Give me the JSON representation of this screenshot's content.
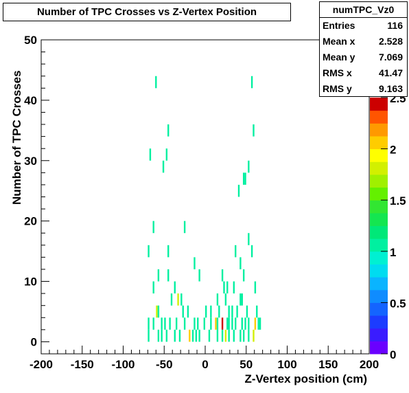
{
  "chart_data": {
    "type": "heatmap",
    "title": "Number of TPC Crosses vs Z-Vertex Position",
    "xlabel": "Z-Vertex position (cm)",
    "ylabel": "Number of TPC Crosses",
    "xlim": [
      -200,
      200
    ],
    "ylim": [
      -2,
      50
    ],
    "zlim": [
      0,
      2.5
    ],
    "x_ticks": [
      "-200",
      "-150",
      "-100",
      "-50",
      "0",
      "50",
      "100",
      "150",
      "200"
    ],
    "y_ticks": [
      "0",
      "10",
      "20",
      "30",
      "40",
      "50"
    ],
    "z_ticks": [
      "0",
      "0.5",
      "1",
      "1.5",
      "2",
      "2.5"
    ],
    "bin_width_x": 2,
    "bin_height_y": 2,
    "bins": [
      {
        "x": -60,
        "y": 43,
        "z": 1
      },
      {
        "x": 57,
        "y": 43,
        "z": 1
      },
      {
        "x": -45,
        "y": 35,
        "z": 1
      },
      {
        "x": 59,
        "y": 35,
        "z": 1
      },
      {
        "x": -67,
        "y": 31,
        "z": 1
      },
      {
        "x": -47,
        "y": 31,
        "z": 1
      },
      {
        "x": -51,
        "y": 29,
        "z": 1
      },
      {
        "x": 53,
        "y": 29,
        "z": 1
      },
      {
        "x": 47,
        "y": 27,
        "z": 1
      },
      {
        "x": 49,
        "y": 27,
        "z": 1
      },
      {
        "x": 41,
        "y": 25,
        "z": 1
      },
      {
        "x": -63,
        "y": 19,
        "z": 1
      },
      {
        "x": -25,
        "y": 19,
        "z": 1
      },
      {
        "x": 53,
        "y": 17,
        "z": 1
      },
      {
        "x": -69,
        "y": 15,
        "z": 1
      },
      {
        "x": -45,
        "y": 15,
        "z": 1
      },
      {
        "x": 37,
        "y": 15,
        "z": 1
      },
      {
        "x": 57,
        "y": 15,
        "z": 1
      },
      {
        "x": -13,
        "y": 13,
        "z": 1
      },
      {
        "x": 43,
        "y": 13,
        "z": 1
      },
      {
        "x": -57,
        "y": 11,
        "z": 1
      },
      {
        "x": -45,
        "y": 11,
        "z": 1
      },
      {
        "x": -7,
        "y": 11,
        "z": 1
      },
      {
        "x": 21,
        "y": 11,
        "z": 1
      },
      {
        "x": 47,
        "y": 11,
        "z": 1
      },
      {
        "x": -63,
        "y": 9,
        "z": 1
      },
      {
        "x": -37,
        "y": 9,
        "z": 1
      },
      {
        "x": 23,
        "y": 9,
        "z": 1
      },
      {
        "x": 27,
        "y": 9,
        "z": 1
      },
      {
        "x": 35,
        "y": 9,
        "z": 1
      },
      {
        "x": 61,
        "y": 9,
        "z": 1
      },
      {
        "x": -41,
        "y": 7,
        "z": 1
      },
      {
        "x": -33,
        "y": 7,
        "z": 1.8
      },
      {
        "x": -29,
        "y": 7,
        "z": 1
      },
      {
        "x": 15,
        "y": 7,
        "z": 1
      },
      {
        "x": 25,
        "y": 7,
        "z": 1
      },
      {
        "x": 43,
        "y": 7,
        "z": 1
      },
      {
        "x": 45,
        "y": 7,
        "z": 1
      },
      {
        "x": -59,
        "y": 5,
        "z": 1.8
      },
      {
        "x": -57,
        "y": 5,
        "z": 1
      },
      {
        "x": -27,
        "y": 5,
        "z": 1
      },
      {
        "x": -21,
        "y": 5,
        "z": 1
      },
      {
        "x": 1,
        "y": 5,
        "z": 1
      },
      {
        "x": 7,
        "y": 5,
        "z": 1
      },
      {
        "x": 17,
        "y": 5,
        "z": 1
      },
      {
        "x": 29,
        "y": 5,
        "z": 1
      },
      {
        "x": 33,
        "y": 5,
        "z": 1
      },
      {
        "x": 39,
        "y": 5,
        "z": 1
      },
      {
        "x": 51,
        "y": 5,
        "z": 1
      },
      {
        "x": 63,
        "y": 5,
        "z": 1
      },
      {
        "x": -69,
        "y": 3,
        "z": 1
      },
      {
        "x": -63,
        "y": 3,
        "z": 1
      },
      {
        "x": -53,
        "y": 3,
        "z": 1
      },
      {
        "x": -49,
        "y": 3,
        "z": 1
      },
      {
        "x": -43,
        "y": 3,
        "z": 1
      },
      {
        "x": -35,
        "y": 3,
        "z": 1
      },
      {
        "x": -25,
        "y": 3,
        "z": 1
      },
      {
        "x": -13,
        "y": 3,
        "z": 1
      },
      {
        "x": -9,
        "y": 3,
        "z": 1
      },
      {
        "x": -1,
        "y": 3,
        "z": 1
      },
      {
        "x": 7,
        "y": 3,
        "z": 1
      },
      {
        "x": 13,
        "y": 3,
        "z": 2
      },
      {
        "x": 15,
        "y": 3,
        "z": 1
      },
      {
        "x": 21,
        "y": 3,
        "z": 2.5
      },
      {
        "x": 27,
        "y": 3,
        "z": 1
      },
      {
        "x": 29,
        "y": 3,
        "z": 1
      },
      {
        "x": 33,
        "y": 3,
        "z": 1
      },
      {
        "x": 37,
        "y": 3,
        "z": 1
      },
      {
        "x": 45,
        "y": 3,
        "z": 1
      },
      {
        "x": 49,
        "y": 3,
        "z": 1
      },
      {
        "x": 53,
        "y": 3,
        "z": 1
      },
      {
        "x": 61,
        "y": 3,
        "z": 2
      },
      {
        "x": 65,
        "y": 3,
        "z": 1
      },
      {
        "x": 67,
        "y": 3,
        "z": 1
      },
      {
        "x": -69,
        "y": 1,
        "z": 1
      },
      {
        "x": -57,
        "y": 1,
        "z": 1
      },
      {
        "x": -53,
        "y": 1,
        "z": 1
      },
      {
        "x": -47,
        "y": 1,
        "z": 1
      },
      {
        "x": -37,
        "y": 1,
        "z": 1
      },
      {
        "x": -31,
        "y": 1,
        "z": 1
      },
      {
        "x": -19,
        "y": 1,
        "z": 2
      },
      {
        "x": -15,
        "y": 1,
        "z": 1
      },
      {
        "x": -11,
        "y": 1,
        "z": 1
      },
      {
        "x": -7,
        "y": 1,
        "z": 1
      },
      {
        "x": 5,
        "y": 1,
        "z": 1
      },
      {
        "x": 15,
        "y": 1,
        "z": 1
      },
      {
        "x": 21,
        "y": 1,
        "z": 1
      },
      {
        "x": 25,
        "y": 1,
        "z": 1.8
      },
      {
        "x": 29,
        "y": 1,
        "z": 1
      },
      {
        "x": 35,
        "y": 1,
        "z": 1
      },
      {
        "x": 43,
        "y": 1,
        "z": 1
      },
      {
        "x": 47,
        "y": 1,
        "z": 1
      },
      {
        "x": 53,
        "y": 1,
        "z": 1
      },
      {
        "x": 59,
        "y": 1,
        "z": 1.8
      }
    ]
  },
  "stats": {
    "name": "numTPC_Vz0",
    "rows": [
      {
        "label": "Entries",
        "value": "116"
      },
      {
        "label": "Mean x",
        "value": "2.528"
      },
      {
        "label": "Mean y",
        "value": "7.069"
      },
      {
        "label": "RMS x",
        "value": "41.47"
      },
      {
        "label": "RMS y",
        "value": "9.163"
      }
    ]
  },
  "colors": {
    "palette": [
      "#6a00ff",
      "#3a1cff",
      "#1c3cff",
      "#1464ff",
      "#0f8cff",
      "#0ab4ff",
      "#00dcf0",
      "#00f0d2",
      "#00f0a0",
      "#00e878",
      "#14e650",
      "#32e632",
      "#64f000",
      "#a0f000",
      "#d2f000",
      "#ffff00",
      "#ffcc00",
      "#ff9900",
      "#ff5500",
      "#cc0000"
    ]
  }
}
